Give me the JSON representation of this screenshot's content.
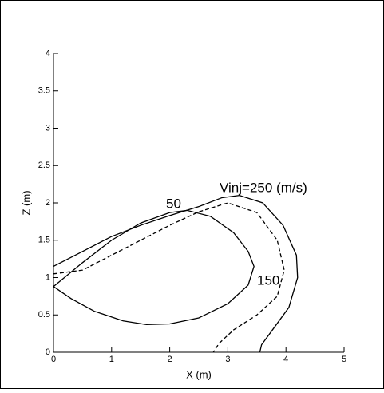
{
  "chart_data": {
    "type": "line",
    "xlabel": "X (m)",
    "ylabel": "Z (m)",
    "xlim": [
      0,
      5
    ],
    "ylim": [
      0,
      4
    ],
    "xticks": [
      0,
      1,
      2,
      3,
      4,
      5
    ],
    "yticks": [
      0,
      0.5,
      1,
      1.5,
      2,
      2.5,
      3,
      3.5,
      4
    ],
    "annotations": [
      "50",
      "150",
      "Vinj=250 (m/s)"
    ],
    "series": [
      {
        "name": "50",
        "color": "#000000",
        "dash": false,
        "x": [
          0,
          0.5,
          1,
          1.5,
          2,
          2.3,
          2.7,
          3.1,
          3.35,
          3.45,
          3.35,
          3.0,
          2.5,
          2.0,
          1.6,
          1.2,
          0.7,
          0.3,
          0
        ],
        "values": [
          0.88,
          1.2,
          1.5,
          1.73,
          1.87,
          1.9,
          1.82,
          1.6,
          1.35,
          1.15,
          0.9,
          0.65,
          0.46,
          0.38,
          0.37,
          0.42,
          0.55,
          0.72,
          0.88
        ]
      },
      {
        "name": "150",
        "color": "#000000",
        "dash": true,
        "x": [
          0,
          0.5,
          1,
          1.5,
          2,
          2.5,
          3.0,
          3.5,
          3.85,
          3.97,
          3.85,
          3.5,
          3.1,
          2.85,
          2.75
        ],
        "values": [
          1.05,
          1.1,
          1.3,
          1.5,
          1.7,
          1.88,
          2.0,
          1.87,
          1.5,
          1.1,
          0.75,
          0.5,
          0.3,
          0.12,
          0
        ]
      },
      {
        "name": "250",
        "color": "#000000",
        "dash": false,
        "x": [
          0,
          0.5,
          1,
          1.5,
          2,
          2.5,
          2.9,
          3.2,
          3.6,
          3.95,
          4.18,
          4.2,
          4.05,
          3.75,
          3.58,
          3.55
        ],
        "values": [
          1.15,
          1.35,
          1.55,
          1.7,
          1.83,
          1.95,
          2.07,
          2.1,
          2.0,
          1.7,
          1.3,
          1.0,
          0.6,
          0.28,
          0.1,
          0
        ]
      }
    ]
  }
}
